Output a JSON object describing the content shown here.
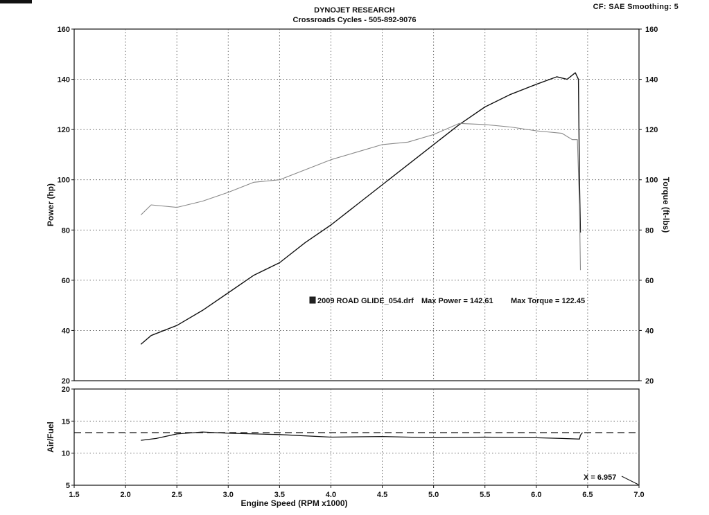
{
  "header": {
    "line1": "DYNOJET RESEARCH",
    "line2": "Crossroads Cycles - 505-892-9076",
    "corner": "CF: SAE  Smoothing: 5"
  },
  "chart_data": [
    {
      "type": "line",
      "panel": "power-torque",
      "xlabel": "Engine Speed (RPM x1000)",
      "ylabel_left": "Power (hp)",
      "ylabel_right": "Torque (ft-lbs)",
      "xlim": [
        1.5,
        7.0
      ],
      "ylim": [
        20,
        160
      ],
      "x_ticks": [
        "1.5",
        "2.0",
        "2.5",
        "3.0",
        "3.5",
        "4.0",
        "4.5",
        "5.0",
        "5.5",
        "6.0",
        "6.5",
        "7.0"
      ],
      "y_ticks": [
        "20",
        "40",
        "60",
        "80",
        "100",
        "120",
        "140",
        "160"
      ],
      "grid": true,
      "legend": {
        "run": "2009 ROAD GLIDE_054.drf",
        "max_power": "Max Power = 142.61",
        "max_torque": "Max Torque = 122.45"
      },
      "series": [
        {
          "key": "power",
          "color": "#111111",
          "x": [
            2.15,
            2.25,
            2.5,
            2.75,
            3.0,
            3.25,
            3.5,
            3.75,
            4.0,
            4.25,
            4.5,
            4.75,
            5.0,
            5.25,
            5.5,
            5.75,
            6.0,
            6.2,
            6.3,
            6.38,
            6.41,
            6.42,
            6.43
          ],
          "y": [
            34.5,
            38,
            42,
            48,
            55,
            62,
            67,
            75,
            82,
            90,
            98,
            106,
            114,
            122,
            129,
            134,
            138,
            141,
            140,
            142.6,
            140,
            100,
            79
          ]
        },
        {
          "key": "torque",
          "color": "#888888",
          "x": [
            2.15,
            2.25,
            2.5,
            2.75,
            3.0,
            3.25,
            3.5,
            3.75,
            4.0,
            4.25,
            4.5,
            4.75,
            5.0,
            5.25,
            5.5,
            5.75,
            6.0,
            6.25,
            6.35,
            6.4,
            6.42,
            6.43
          ],
          "y": [
            86,
            90,
            89,
            91.5,
            95,
            99,
            100,
            104,
            108,
            111,
            114,
            115,
            118,
            122.45,
            122,
            121,
            119.5,
            118.5,
            116,
            116,
            90,
            64
          ]
        }
      ]
    },
    {
      "type": "line",
      "panel": "air-fuel",
      "ylabel": "Air/Fuel",
      "xlim": [
        1.5,
        7.0
      ],
      "ylim": [
        5,
        20
      ],
      "y_ticks": [
        "5",
        "10",
        "15",
        "20"
      ],
      "grid": true,
      "reference": 13.2,
      "annotation": "X = 6.957",
      "series": [
        {
          "key": "afr",
          "color": "#111111",
          "x": [
            2.15,
            2.3,
            2.5,
            2.75,
            3.0,
            3.5,
            4.0,
            4.5,
            5.0,
            5.5,
            6.0,
            6.25,
            6.42,
            6.43,
            6.45
          ],
          "y": [
            12.0,
            12.3,
            13.0,
            13.3,
            13.1,
            12.9,
            12.5,
            12.6,
            12.4,
            12.5,
            12.4,
            12.3,
            12.2,
            12.8,
            13.2
          ]
        }
      ]
    }
  ]
}
